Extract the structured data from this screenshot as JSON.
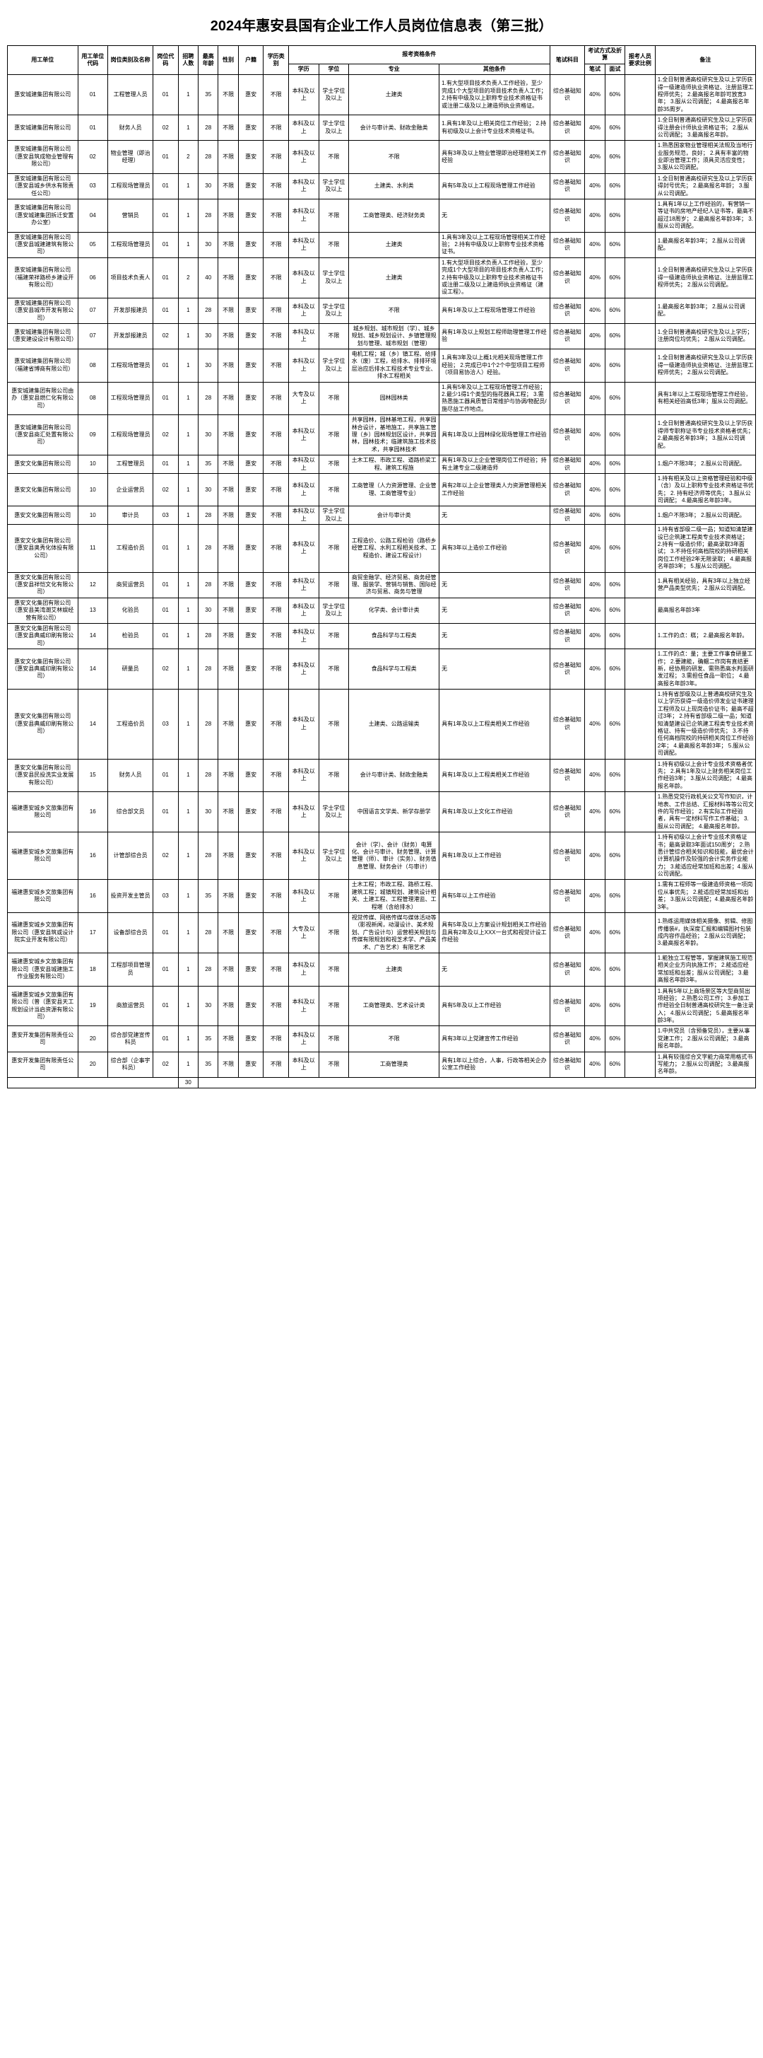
{
  "title": "2024年惠安县国有企业工作人员岗位信息表（第三批）",
  "header_row1": {
    "employer": "用工单位",
    "employer_code": "用工单位代码",
    "position_name": "岗位类别及名称",
    "position_code": "岗位代码",
    "recruit_num": "招聘人数",
    "max_age": "最高年龄",
    "sex": "性别",
    "hukou": "户籍",
    "degree_cat": "学历类别",
    "qualifications": "报考资格条件",
    "exam_subject": "笔试科目",
    "exam_method": "考试方式及折算",
    "ratio": "报考人员要求比例",
    "remark": "备注"
  },
  "header_row2": {
    "edu": "学历",
    "xuewei": "学位",
    "major": "专业",
    "other": "其他条件",
    "written": "笔试",
    "interview": "面试"
  },
  "rows": [
    {
      "employer": "惠安城建集团有限公司",
      "emp_code": "01",
      "pos_name": "工程管理人员",
      "pos_code": "01",
      "num": "1",
      "age": "35",
      "sex": "不限",
      "hukou": "惠安",
      "deg_cat": "不限",
      "edu": "本科及以上",
      "xuewei": "学士学位及以上",
      "major": "土建类",
      "other": "1.有大型项目技术负责人工作经验，至少完成1个大型项目的项目技术负责人工作；\n2.持有中级及以上职称专业技术资格证书或注册二级及以上建造师执业资格证。",
      "exam_sub": "综合基础知识",
      "written": "40%",
      "interview": "60%",
      "ratio": "",
      "remark": "1.全日制普通高校研究生及以上学历获得一级建造师执业资格证、注册监理工程师优先；\n2.最高报名年龄可放宽3年；\n3.服从公司调配；\n4.最高报名年龄35周岁。"
    },
    {
      "employer": "惠安城建集团有限公司",
      "emp_code": "01",
      "pos_name": "财务人员",
      "pos_code": "02",
      "num": "1",
      "age": "28",
      "sex": "不限",
      "hukou": "惠安",
      "deg_cat": "不限",
      "edu": "本科及以上",
      "xuewei": "学士学位及以上",
      "major": "会计与审计类、财政金融类",
      "other": "1.具有1年及以上相关岗位工作经验；\n2.持有初级及以上会计专业技术资格证书。",
      "exam_sub": "综合基础知识",
      "written": "40%",
      "interview": "60%",
      "ratio": "",
      "remark": "1.全日制普通高校研究生及以上学历获得注册会计师执业资格证书；\n2.服从公司调配；\n3.最高报名年龄。"
    },
    {
      "employer": "惠安城建集团有限公司（惠安县筑成物业管理有限公司）",
      "emp_code": "02",
      "pos_name": "物业管理（即治经理）",
      "pos_code": "01",
      "num": "2",
      "age": "28",
      "sex": "不限",
      "hukou": "惠安",
      "deg_cat": "不限",
      "edu": "本科及以上",
      "xuewei": "不限",
      "major": "不限",
      "other": "具有3年及以上物业管理即治经理相关工作经验",
      "exam_sub": "综合基础知识",
      "written": "40%",
      "interview": "60%",
      "ratio": "",
      "remark": "1.熟悉国家物业管理相关法规及当地行业服务规范，良好；\n2.具有丰富的物业即治管理工作；须具灵活应变性；\n3.服从公司调配。"
    },
    {
      "employer": "惠安城建集团有限公司（惠安县城乡供水有限责任公司）",
      "emp_code": "03",
      "pos_name": "工程现场管理员",
      "pos_code": "01",
      "num": "1",
      "age": "30",
      "sex": "不限",
      "hukou": "惠安",
      "deg_cat": "不限",
      "edu": "本科及以上",
      "xuewei": "学士学位及以上",
      "major": "土建类、水利类",
      "other": "具有5年及以上工程现场管理工作经验",
      "exam_sub": "综合基础知识",
      "written": "40%",
      "interview": "60%",
      "ratio": "",
      "remark": "1.全日制普通高校研究生及以上学历获得封号优先；\n2.最高报名年龄；\n3.服从公司调配。"
    },
    {
      "employer": "惠安城建集团有限公司（惠安城建集团拆迁安置办公室）",
      "emp_code": "04",
      "pos_name": "营销员",
      "pos_code": "01",
      "num": "1",
      "age": "28",
      "sex": "不限",
      "hukou": "惠安",
      "deg_cat": "不限",
      "edu": "本科及以上",
      "xuewei": "不限",
      "major": "工商管理类、经济财务类",
      "other": "无",
      "exam_sub": "综合基础知识",
      "written": "40%",
      "interview": "60%",
      "ratio": "",
      "remark": "1.具有1年以上工作经验的，有营销一等证书的房地产经纪人证书等，最高不超过18周岁；\n2.最高报名年龄3年；\n3.服从公司调配。"
    },
    {
      "employer": "惠安城建集团有限公司（惠安县城建建筑有限公司）",
      "emp_code": "05",
      "pos_name": "工程现场管理员",
      "pos_code": "01",
      "num": "1",
      "age": "30",
      "sex": "不限",
      "hukou": "惠安",
      "deg_cat": "不限",
      "edu": "本科及以上",
      "xuewei": "不限",
      "major": "土建类",
      "other": "1.具有3年及以上工程现场管理相关工作经验；\n2.持有中级及以上职称专业技术资格证书。",
      "exam_sub": "综合基础知识",
      "written": "40%",
      "interview": "60%",
      "ratio": "",
      "remark": "1.最高报名年龄3年；\n2.服从公司调配。"
    },
    {
      "employer": "惠安城建集团有限公司（福建荣祥路桥乡建设开有限公司）",
      "emp_code": "06",
      "pos_name": "项目技术负责人",
      "pos_code": "01",
      "num": "2",
      "age": "40",
      "sex": "不限",
      "hukou": "惠安",
      "deg_cat": "不限",
      "edu": "本科及以上",
      "xuewei": "学士学位及以上",
      "major": "土建类",
      "other": "1.有大型项目技术负责人工作经验，至少完成1个大型项目的项目技术负责人工作；\n2.持有中级及以上职称专业技术资格证书或注册二级及以上建造师执业资格证（建设工程）。",
      "exam_sub": "综合基础知识",
      "written": "40%",
      "interview": "60%",
      "ratio": "",
      "remark": "1.全日制普通高校研究生及以上学历获得一级建造师执业资格证、注册监理工程师优先；\n2.服从公司调配。"
    },
    {
      "employer": "惠安城建集团有限公司（惠安县城市开发有限公司）",
      "emp_code": "07",
      "pos_name": "开发部报建员",
      "pos_code": "01",
      "num": "1",
      "age": "28",
      "sex": "不限",
      "hukou": "惠安",
      "deg_cat": "不限",
      "edu": "本科及以上",
      "xuewei": "学士学位及以上",
      "major": "不限",
      "other": "具有1年及以上工程现场管理工作经验",
      "exam_sub": "综合基础知识",
      "written": "40%",
      "interview": "60%",
      "ratio": "",
      "remark": "1.最高报名年龄3年；\n2.服从公司调配。"
    },
    {
      "employer": "惠安城建集团有限公司（惠安建设设计有限公司）",
      "emp_code": "07",
      "pos_name": "开发部报建员",
      "pos_code": "02",
      "num": "1",
      "age": "30",
      "sex": "不限",
      "hukou": "惠安",
      "deg_cat": "不限",
      "edu": "本科及以上",
      "xuewei": "不限",
      "major": "城乡规划、城市规划（学）、城乡规划、城乡规划设计、乡镇管理规划与管理、城市规划（管理）",
      "other": "具有1年及以上规划工程师助理管理工作经验",
      "exam_sub": "综合基础知识",
      "written": "40%",
      "interview": "60%",
      "ratio": "",
      "remark": "1.全日制普通高校研究生及以上学历；注册岗位均优先；\n2.服从公司调配。"
    },
    {
      "employer": "惠安城建集团有限公司（福建省博商有限公司）",
      "emp_code": "08",
      "pos_name": "工程现场管理员",
      "pos_code": "01",
      "num": "1",
      "age": "30",
      "sex": "不限",
      "hukou": "惠安",
      "deg_cat": "不限",
      "edu": "本科及以上",
      "xuewei": "学士学位及以上",
      "major": "电机工程；城（乡）镇工程、给排水（废）工程，给排水、排排环境层治应后排水工程技术专业专业、排水工程相关",
      "other": "1.具有3年及以上概1元相关现场管理工作经验；\n2.完成已中1个2个中型项目工程师（项目易协洽人）经验。",
      "exam_sub": "综合基础知识",
      "written": "40%",
      "interview": "60%",
      "ratio": "",
      "remark": "1.全日制普通高校研究生及以上学历获得一级建造师执业资格证、注册监理工程师优先；\n2.服从公司调配。"
    },
    {
      "employer": "惠安城建集团有限公司由办（惠安县燃仁化有限公司）",
      "emp_code": "08",
      "pos_name": "工程现场管理员",
      "pos_code": "01",
      "num": "1",
      "age": "28",
      "sex": "不限",
      "hukou": "惠安",
      "deg_cat": "不限",
      "edu": "大专及以上",
      "xuewei": "不限",
      "major": "园林园林类",
      "other": "1.具有5年及以上工程现场管理工作经验；\n2.最少1得1个类型的指花器具工程；\n3.需熟悉施工器具质管日常维护与协调/物配员/施尽益工作地点。",
      "exam_sub": "综合基础知识",
      "written": "40%",
      "interview": "60%",
      "ratio": "",
      "remark": "具有1年以上工程现场管理工作经验，有相关经验高低3年；服从公司调配。"
    },
    {
      "employer": "惠安城建集团有限公司（惠安县商汇处置有限公司）",
      "emp_code": "09",
      "pos_name": "工程现场管理员",
      "pos_code": "02",
      "num": "1",
      "age": "30",
      "sex": "不限",
      "hukou": "惠安",
      "deg_cat": "不限",
      "edu": "本科及以上",
      "xuewei": "不限",
      "major": "共享园林，园林基地工程，共享园林合设计，基地施工，共享施工管理（乡）园林规划区设计，共享园林，园林技术；临建筑施工技术技术，共享园林技术",
      "other": "具有1年及以上园林绿化现场管理工作经验",
      "exam_sub": "综合基础知识",
      "written": "40%",
      "interview": "60%",
      "ratio": "",
      "remark": "1.全日制普通高校研究生及以上学历获得师专职称证书专业技术资格者优先；\n2.最高报名年龄3年；\n3.服从公司调配。"
    },
    {
      "employer": "惠安文化集团有限公司",
      "emp_code": "10",
      "pos_name": "工程管理员",
      "pos_code": "01",
      "num": "1",
      "age": "35",
      "sex": "不限",
      "hukou": "惠安",
      "deg_cat": "不限",
      "edu": "本科及以上",
      "xuewei": "不限",
      "major": "土木工程、市政工程、道路桥梁工程、建筑工程施",
      "other": "具有1年及以上企业管理岗位工作经验；持有土建专业二级建造师",
      "exam_sub": "综合基础知识",
      "written": "40%",
      "interview": "60%",
      "ratio": "",
      "remark": "1.烟户不限3年；\n2.服从公司调配。"
    },
    {
      "employer": "惠安文化集团有限公司",
      "emp_code": "10",
      "pos_name": "企业运营员",
      "pos_code": "02",
      "num": "1",
      "age": "30",
      "sex": "不限",
      "hukou": "惠安",
      "deg_cat": "不限",
      "edu": "本科及以上",
      "xuewei": "不限",
      "major": "工商管理（人力资源管理、企业管理、工商管理专业）",
      "other": "具有2年以上企业管理类人力资源管理相关工作经验",
      "exam_sub": "综合基础知识",
      "written": "40%",
      "interview": "60%",
      "ratio": "",
      "remark": "1.持有相关及以上资格管理经验和中级（含）及以上职称专业技术资格证书优先；\n2. 持有经济师等优先；\n3.服从公司调配；\n4.最高报名年龄3年。"
    },
    {
      "employer": "惠安文化集团有限公司",
      "emp_code": "10",
      "pos_name": "审计员",
      "pos_code": "03",
      "num": "1",
      "age": "28",
      "sex": "不限",
      "hukou": "惠安",
      "deg_cat": "不限",
      "edu": "本科及以上",
      "xuewei": "学士学位及以上",
      "major": "会计与审计类",
      "other": "无",
      "exam_sub": "综合基础知识",
      "written": "40%",
      "interview": "60%",
      "ratio": "",
      "remark": "1.烟户不限3年；\n2.服从公司调配。"
    },
    {
      "employer": "惠安文化集团有限公司（惠安县奥秀化体投有限公司）",
      "emp_code": "11",
      "pos_name": "工程造价员",
      "pos_code": "01",
      "num": "1",
      "age": "28",
      "sex": "不限",
      "hukou": "惠安",
      "deg_cat": "不限",
      "edu": "本科及以上",
      "xuewei": "不限",
      "major": "工程造价、公路工程检验（路桥乡经管工程、水利工程相关技术、工程造价、建设工程设计）",
      "other": "具有3年以上造价工作经验",
      "exam_sub": "综合基础知识",
      "written": "40%",
      "interview": "60%",
      "ratio": "",
      "remark": "1.持有省部级二级一品；知道知清楚建设已企筑建工程类专业技术资格证；\n2.持有一级造价师；最高录取3年面试；\n3.不持任何高档院校的持研相关岗位工作经验2年无限录取；\n4.最高报名年龄3年；\n5.服从公司调配。"
    },
    {
      "employer": "惠安文化集团有限公司（惠安县祥恺文化有限公司）",
      "emp_code": "12",
      "pos_name": "商贸运营员",
      "pos_code": "01",
      "num": "1",
      "age": "28",
      "sex": "不限",
      "hukou": "惠安",
      "deg_cat": "不限",
      "edu": "本科及以上",
      "xuewei": "不限",
      "major": "商贸金融学、经济贸易、商务经管理、服装学、营销与销售、国际经济与贸易、商务与管理",
      "other": "无",
      "exam_sub": "综合基础知识",
      "written": "40%",
      "interview": "60%",
      "ratio": "",
      "remark": "1.具有相关经验，具有3年以上独立经营产品类型优先；\n2.服从公司调配。"
    },
    {
      "employer": "惠安文化集团有限公司（惠安县美湾潮艾林娱经营有限公司）",
      "emp_code": "13",
      "pos_name": "化验员",
      "pos_code": "01",
      "num": "1",
      "age": "30",
      "sex": "不限",
      "hukou": "惠安",
      "deg_cat": "不限",
      "edu": "本科及以上",
      "xuewei": "学士学位及以上",
      "major": "化学类、会计审计类",
      "other": "无",
      "exam_sub": "综合基础知识",
      "written": "40%",
      "interview": "60%",
      "ratio": "",
      "remark": "最高报名年龄3年"
    },
    {
      "employer": "惠安文化集团有限公司（惠安县典威印刷有限公司）",
      "emp_code": "14",
      "pos_name": "检验员",
      "pos_code": "01",
      "num": "1",
      "age": "28",
      "sex": "不限",
      "hukou": "惠安",
      "deg_cat": "不限",
      "edu": "本科及以上",
      "xuewei": "不限",
      "major": "食品科学与工程类",
      "other": "无",
      "exam_sub": "综合基础知识",
      "written": "40%",
      "interview": "60%",
      "ratio": "",
      "remark": "1.工作的点：糕；\n2.最高报名年龄。"
    },
    {
      "employer": "惠安文化集团有限公司（惠安县典威印刷有限公司）",
      "emp_code": "14",
      "pos_name": "研量员",
      "pos_code": "02",
      "num": "1",
      "age": "28",
      "sex": "不限",
      "hukou": "惠安",
      "deg_cat": "不限",
      "edu": "本科及以上",
      "xuewei": "不限",
      "major": "食品科学与工程类",
      "other": "无",
      "exam_sub": "综合基础知识",
      "written": "40%",
      "interview": "60%",
      "ratio": "",
      "remark": "1.工作的点：量；主要工作事食研量工作；\n2.要建能，确鲴二作岗有直结更新，经协用的研发、需熟悉高水判面研发过程；\n3.需担任食品一职位；\n4.最高报名年龄3年。"
    },
    {
      "employer": "惠安文化集团有限公司（惠安县典威印刷有限公司）",
      "emp_code": "14",
      "pos_name": "工程造价员",
      "pos_code": "03",
      "num": "1",
      "age": "28",
      "sex": "不限",
      "hukou": "惠安",
      "deg_cat": "不限",
      "edu": "本科及以上",
      "xuewei": "不限",
      "major": "土建类、公路运输类",
      "other": "具有1年及以上工程类相关工作经验",
      "exam_sub": "综合基础知识",
      "written": "40%",
      "interview": "60%",
      "ratio": "",
      "remark": "1.持有省部级及以上普通高校研究生及以上学历获得一级造价师发业证书建理工程师及以上现岗造价证书；最高不超过3年；\n2.持有省部级二级一品；知道知清楚建设已企筑建工程类专业技术资格证、持有一级造价师优先；\n3.不持任何高档院校的持研相关岗位工作经验2年；\n4.最高报名年龄3年；\n5.服从公司调配。"
    },
    {
      "employer": "惠安文化集团有限公司（惠安县民投洗实业发展有限公司）",
      "emp_code": "15",
      "pos_name": "财务人员",
      "pos_code": "01",
      "num": "1",
      "age": "28",
      "sex": "不限",
      "hukou": "惠安",
      "deg_cat": "不限",
      "edu": "本科及以上",
      "xuewei": "不限",
      "major": "会计与审计类、财政金融类",
      "other": "具有1年及以上工程类相关工作经验",
      "exam_sub": "综合基础知识",
      "written": "40%",
      "interview": "60%",
      "ratio": "",
      "remark": "1.持有初级以上会计专业技术资格者优先；\n2.具有1年及以上财务相关岗位工作经验3年；\n3.服从公司调配；\n4.最高报名年龄。"
    },
    {
      "employer": "福建惠安城乡文旅集团有限公司",
      "emp_code": "16",
      "pos_name": "综合部文员",
      "pos_code": "01",
      "num": "1",
      "age": "30",
      "sex": "不限",
      "hukou": "惠安",
      "deg_cat": "不限",
      "edu": "本科及以上",
      "xuewei": "学士学位及以上",
      "major": "中国语言文学类、新学存册学",
      "other": "具有1年及以上文化工作经验",
      "exam_sub": "综合基础知识",
      "written": "40%",
      "interview": "60%",
      "ratio": "",
      "remark": "1.熟悉党党行政机关公文写作知识，计地表、工作总结、汇报材料等等公司文件的写作经验；\n2.有实际工作经验者，具有一定材料写作工作基础；\n3.服从公司调配；\n4.最高报名年龄。"
    },
    {
      "employer": "福建惠安城乡文旅集团有限公司",
      "emp_code": "16",
      "pos_name": "计管部综合员",
      "pos_code": "02",
      "num": "1",
      "age": "28",
      "sex": "不限",
      "hukou": "惠安",
      "deg_cat": "不限",
      "edu": "本科及以上",
      "xuewei": "学士学位及以上",
      "major": "会计（学）、会计（财务）电算化、会计与审计、财务管理、计算管理（师）、审计（实务）、财务值息管理、财务会计（与审计）",
      "other": "具有1年及以上工作经验",
      "exam_sub": "综合基础知识",
      "written": "40%",
      "interview": "60%",
      "ratio": "",
      "remark": "1.持有初级以上会计专业技术资格证书；最高录取3年面试150周岁；\n2.熟悉计管综合相关知识和技能，最优会计计算机操作及较强的会计实务作业能力；\n3.能适应经常加班和出差；4.服从公司调配。"
    },
    {
      "employer": "福建惠安城乡文旅集团有限公司",
      "emp_code": "16",
      "pos_name": "投资开发主管员",
      "pos_code": "03",
      "num": "1",
      "age": "35",
      "sex": "不限",
      "hukou": "惠安",
      "deg_cat": "不限",
      "edu": "本科及以上",
      "xuewei": "不限",
      "major": "土木工程；市政工程、路桥工程、建筑工程；城镇规划、建筑设计相关、土建工程、工程管理港监、工程堪（含给排水）",
      "other": "具有5年以上工作经验",
      "exam_sub": "综合基础知识",
      "written": "40%",
      "interview": "60%",
      "ratio": "",
      "remark": "1.需有工程师等一级建造师资格一项岗位从事优先；\n2.能适应经常加班和出差；\n3.服从公司调配；4.最高报名年龄3年。"
    },
    {
      "employer": "福建惠安城乡文旅集团有限公司（惠安县筑或设计院实业开发有限公司）",
      "emp_code": "17",
      "pos_name": "设备部综合员",
      "pos_code": "01",
      "num": "1",
      "age": "28",
      "sex": "不限",
      "hukou": "惠安",
      "deg_cat": "不限",
      "edu": "大专及以上",
      "xuewei": "不限",
      "major": "视觉传媒、网络传媒与媒体活动等（影视新闻，动漫设计、美术规划、广告设计与）运营相关规划与传媒有限规划和视芝术学、产品美术、广告艺术）有限艺术",
      "other": "具有5年及以上方案设计规划相关工作经验且具有2年及以上XXX一台式和视觉计设工作经验",
      "exam_sub": "综合基础知识",
      "written": "40%",
      "interview": "60%",
      "ratio": "",
      "remark": "1.熟练运用媒体相关摄像、剪辑、修图传播装#，执深度汇报和编辑图衬包装成内容作品经验；\n2.服从公司调配；\n3.最高报名年龄。"
    },
    {
      "employer": "福建惠安城乡文旅集团有限公司（惠安县城建施工作业服务有限公司）",
      "emp_code": "18",
      "pos_name": "工程部项目管理员",
      "pos_code": "01",
      "num": "1",
      "age": "28",
      "sex": "不限",
      "hukou": "惠安",
      "deg_cat": "不限",
      "edu": "本科及以上",
      "xuewei": "不限",
      "major": "土建类",
      "other": "无",
      "exam_sub": "综合基础知识",
      "written": "40%",
      "interview": "60%",
      "ratio": "",
      "remark": "1.能独立工程管等，掌握建筑施工规范相关企业方向执施工作；\n2.能适应经常加班和出差；服从公司调配；\n3.最高报名年龄3年。"
    },
    {
      "employer": "福建惠安城乡文旅集团有限公司（普（惠安县天工规划设计当启资源有限公司）",
      "emp_code": "19",
      "pos_name": "商旅运营员",
      "pos_code": "01",
      "num": "1",
      "age": "30",
      "sex": "不限",
      "hukou": "惠安",
      "deg_cat": "不限",
      "edu": "本科及以上",
      "xuewei": "不限",
      "major": "工商管理类、艺术设计类",
      "other": "具有5年及以上工作经验",
      "exam_sub": "综合基础知识",
      "written": "40%",
      "interview": "60%",
      "ratio": "",
      "remark": "1.具有5年以上商场景区等大型商贸出项经验；\n2.熟悉公司工作；\n3.参加工作经验全日制普通高校研究生一备注录入；\n4.服从公司调配；\n5.最高报名年龄3年。"
    },
    {
      "employer": "惠安开发集团有限责任公司",
      "emp_code": "20",
      "pos_name": "综合部党建宣传科员",
      "pos_code": "01",
      "num": "1",
      "age": "35",
      "sex": "不限",
      "hukou": "惠安",
      "deg_cat": "不限",
      "edu": "本科及以上",
      "xuewei": "不限",
      "major": "不限",
      "other": "具有3年以上党建宣传工作经验",
      "exam_sub": "综合基础知识",
      "written": "40%",
      "interview": "60%",
      "ratio": "",
      "remark": "1.中共党员（含预备党员），主要从事党建工作；\n2.服从公司调配；\n3.最高报名年龄。"
    },
    {
      "employer": "惠安开发集团有限责任公司",
      "emp_code": "20",
      "pos_name": "综合部（企事宇科员）",
      "pos_code": "02",
      "num": "1",
      "age": "35",
      "sex": "不限",
      "hukou": "惠安",
      "deg_cat": "不限",
      "edu": "本科及以上",
      "xuewei": "不限",
      "major": "工商管理类",
      "other": "具有1年以上综合，人事，行政等相关企办公室工作经验",
      "exam_sub": "综合基础知识",
      "written": "40%",
      "interview": "60%",
      "ratio": "",
      "remark": "1.具有较强综合文字能力商常用格式书写能力；\n2.服从公司调配；\n3.最高报名年龄。"
    }
  ],
  "total_label": "30",
  "footer": ""
}
